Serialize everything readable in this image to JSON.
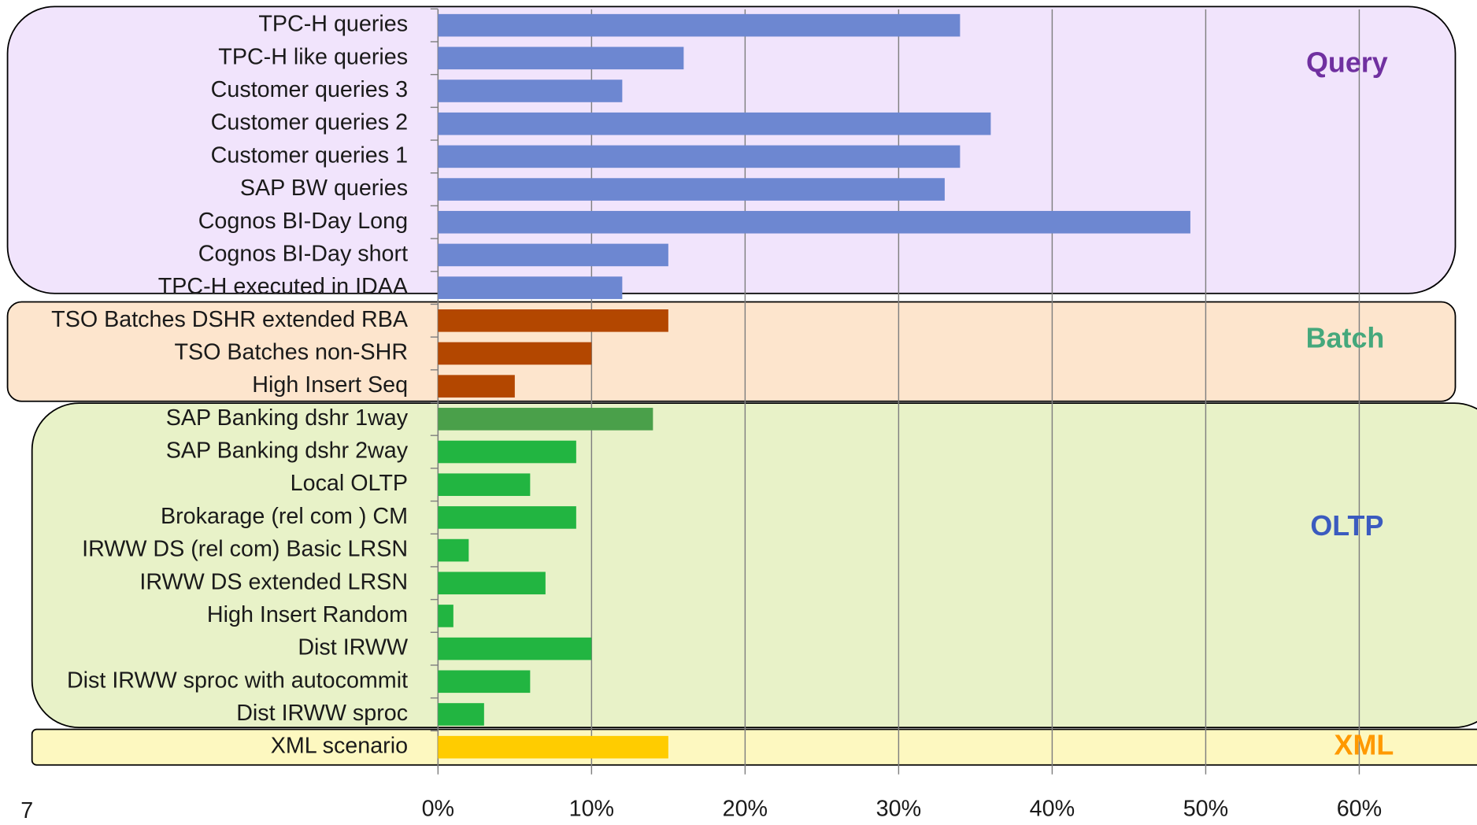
{
  "chart_data": {
    "type": "bar",
    "orientation": "horizontal",
    "groups": [
      {
        "name": "Query",
        "label_color": "#7030a0",
        "background": "#f1e4fc",
        "color": "#6d87d1",
        "categories": [
          "TPC-H queries",
          "TPC-H like queries",
          "Customer queries 3",
          "Customer queries 2",
          "Customer queries 1",
          "SAP BW queries",
          "Cognos BI-Day Long",
          "Cognos BI-Day short",
          "TPC-H executed in IDAA"
        ],
        "values": [
          34,
          16,
          12,
          36,
          34,
          33,
          49,
          15,
          12
        ]
      },
      {
        "name": "Batch",
        "label_color": "#45a87c",
        "background": "#fde5cd",
        "color": "#b34700",
        "categories": [
          "TSO Batches DSHR extended RBA",
          "TSO Batches non-SHR",
          "High Insert Seq"
        ],
        "values": [
          15,
          10,
          5
        ]
      },
      {
        "name": "OLTP",
        "label_color": "#3b5bbf",
        "background": "#e8f2c8",
        "color": "#22b541",
        "colors": [
          "#4aa04a",
          "#22b541",
          "#22b541",
          "#22b541",
          "#22b541",
          "#22b541",
          "#22b541",
          "#22b541",
          "#22b541",
          "#22b541"
        ],
        "categories": [
          "SAP Banking dshr  1way",
          "SAP Banking dshr  2way",
          "Local OLTP",
          "Brokarage (rel com ) CM",
          "IRWW DS (rel com) Basic LRSN",
          "IRWW DS extended LRSN",
          "High Insert Random",
          "Dist IRWW",
          "Dist IRWW sproc with autocommit",
          "Dist IRWW sproc"
        ],
        "values": [
          14,
          9,
          6,
          9,
          2,
          7,
          1,
          10,
          6,
          3
        ]
      },
      {
        "name": "XML",
        "label_color": "#ff9900",
        "background": "#fdf8c0",
        "color": "#ffcc00",
        "categories": [
          "XML scenario"
        ],
        "values": [
          15
        ]
      }
    ],
    "xlim": [
      0,
      66
    ],
    "xticks": [
      {
        "value": 0,
        "label": "0%"
      },
      {
        "value": 10,
        "label": "10%"
      },
      {
        "value": 20,
        "label": "20%"
      },
      {
        "value": 30,
        "label": "30%"
      },
      {
        "value": 40,
        "label": "40%"
      },
      {
        "value": 50,
        "label": "50%"
      },
      {
        "value": 60,
        "label": "60%"
      }
    ],
    "grid": true
  },
  "footer": {
    "page_number": "7"
  }
}
